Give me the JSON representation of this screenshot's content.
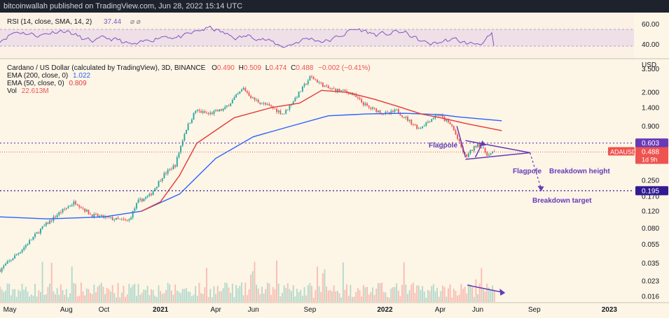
{
  "header": {
    "publisher": "bitcoinwallah published on TradingView.com, Jun 28, 2022 15:14 UTC"
  },
  "rsi": {
    "label": "RSI (14, close, SMA, 14, 2)",
    "value": "37.44",
    "levels": [
      "60.00",
      "40.00"
    ],
    "color": "#7e57c2"
  },
  "legend": {
    "title": "Cardano / US Dollar (calculated by TradingView), 3D, BINANCE",
    "o_label": "O",
    "o": "0.490",
    "h_label": "H",
    "h": "0.509",
    "l_label": "L",
    "l": "0.474",
    "c_label": "C",
    "c": "0.488",
    "change": "−0.002 (−0.41%)",
    "ema200_label": "EMA (200, close, 0)",
    "ema200_value": "1.022",
    "ema50_label": "EMA (50, close, 0)",
    "ema50_value": "0.809",
    "vol_label": "Vol",
    "vol_value": "22.613M"
  },
  "colors": {
    "up": "#26a69a",
    "down": "#ef5350",
    "ema200": "#2962ff",
    "ema50": "#e53935",
    "annotation": "#673ab7",
    "background": "#fdf5e6"
  },
  "annotations": {
    "flagpole_1": "Flagpole",
    "flagpole_2": "Flagpole",
    "breakdown_height": "Breakdown height",
    "breakdown_target": "Breakdown target"
  },
  "price_axis": {
    "currency": "USD",
    "ticks": [
      "3.500",
      "2.000",
      "1.400",
      "0.900",
      "0.250",
      "0.170",
      "0.120",
      "0.080",
      "0.055",
      "0.035",
      "0.023",
      "0.016"
    ],
    "badge_upper": "0.603",
    "badge_symbol": "ADAUSD",
    "badge_last": "0.488",
    "badge_countdown": "1d 9h",
    "badge_target": "0.195"
  },
  "time_axis": {
    "labels": [
      "May",
      "Aug",
      "Oct",
      "2021",
      "Apr",
      "Jun",
      "Sep",
      "2022",
      "Apr",
      "Jun",
      "Sep",
      "2023"
    ]
  },
  "chart_data": {
    "type": "candlestick",
    "symbol": "ADAUSD",
    "timeframe": "3D",
    "y_scale": "log",
    "ylim": [
      0.014,
      4.3
    ],
    "x_range": [
      "2020-04-15",
      "2023-02-10"
    ],
    "price_path": [
      [
        "2020-04-15",
        0.03
      ],
      [
        "2020-05-20",
        0.048
      ],
      [
        "2020-06-20",
        0.078
      ],
      [
        "2020-07-20",
        0.115
      ],
      [
        "2020-08-15",
        0.15
      ],
      [
        "2020-09-10",
        0.11
      ],
      [
        "2020-10-15",
        0.1
      ],
      [
        "2020-11-10",
        0.095
      ],
      [
        "2020-11-25",
        0.15
      ],
      [
        "2020-12-15",
        0.175
      ],
      [
        "2021-01-05",
        0.28
      ],
      [
        "2021-01-25",
        0.36
      ],
      [
        "2021-02-10",
        0.8
      ],
      [
        "2021-02-27",
        1.3
      ],
      [
        "2021-03-20",
        1.2
      ],
      [
        "2021-04-15",
        1.35
      ],
      [
        "2021-05-16",
        2.2
      ],
      [
        "2021-06-01",
        1.7
      ],
      [
        "2021-07-01",
        1.4
      ],
      [
        "2021-07-20",
        1.2
      ],
      [
        "2021-08-15",
        2.0
      ],
      [
        "2021-09-02",
        2.9
      ],
      [
        "2021-09-30",
        2.2
      ],
      [
        "2021-11-05",
        2.0
      ],
      [
        "2021-12-05",
        1.4
      ],
      [
        "2022-01-05",
        1.2
      ],
      [
        "2022-01-20",
        1.3
      ],
      [
        "2022-02-25",
        0.85
      ],
      [
        "2022-03-28",
        1.2
      ],
      [
        "2022-04-20",
        0.9
      ],
      [
        "2022-05-12",
        0.43
      ],
      [
        "2022-06-01",
        0.6
      ],
      [
        "2022-06-18",
        0.45
      ],
      [
        "2022-06-28",
        0.488
      ]
    ],
    "ema200": [
      [
        "2020-04-15",
        0.105
      ],
      [
        "2020-07-01",
        0.1
      ],
      [
        "2020-10-01",
        0.105
      ],
      [
        "2020-12-01",
        0.12
      ],
      [
        "2021-02-01",
        0.18
      ],
      [
        "2021-04-01",
        0.42
      ],
      [
        "2021-06-01",
        0.7
      ],
      [
        "2021-08-01",
        0.9
      ],
      [
        "2021-10-01",
        1.15
      ],
      [
        "2021-12-01",
        1.2
      ],
      [
        "2022-02-01",
        1.22
      ],
      [
        "2022-04-01",
        1.18
      ],
      [
        "2022-05-01",
        1.12
      ],
      [
        "2022-07-10",
        1.022
      ]
    ],
    "ema50": [
      [
        "2020-12-01",
        0.12
      ],
      [
        "2021-01-01",
        0.15
      ],
      [
        "2021-02-01",
        0.28
      ],
      [
        "2021-03-01",
        0.6
      ],
      [
        "2021-05-01",
        1.1
      ],
      [
        "2021-07-01",
        1.4
      ],
      [
        "2021-08-15",
        1.55
      ],
      [
        "2021-09-20",
        2.1
      ],
      [
        "2021-11-01",
        2.0
      ],
      [
        "2021-12-15",
        1.7
      ],
      [
        "2022-01-20",
        1.45
      ],
      [
        "2022-03-01",
        1.2
      ],
      [
        "2022-04-01",
        1.1
      ],
      [
        "2022-05-15",
        0.95
      ],
      [
        "2022-07-10",
        0.809
      ]
    ],
    "levels": {
      "flag_top": 0.603,
      "last": 0.488,
      "target": 0.195
    },
    "flag": {
      "pole": [
        [
          "2022-04-28",
          0.9
        ],
        [
          "2022-05-12",
          0.43
        ]
      ],
      "upper": [
        [
          "2022-05-12",
          0.64
        ],
        [
          "2022-08-25",
          0.48
        ]
      ],
      "lower": [
        [
          "2022-05-12",
          0.41
        ],
        [
          "2022-08-25",
          0.48
        ]
      ]
    },
    "rsi_current": 37.44
  }
}
